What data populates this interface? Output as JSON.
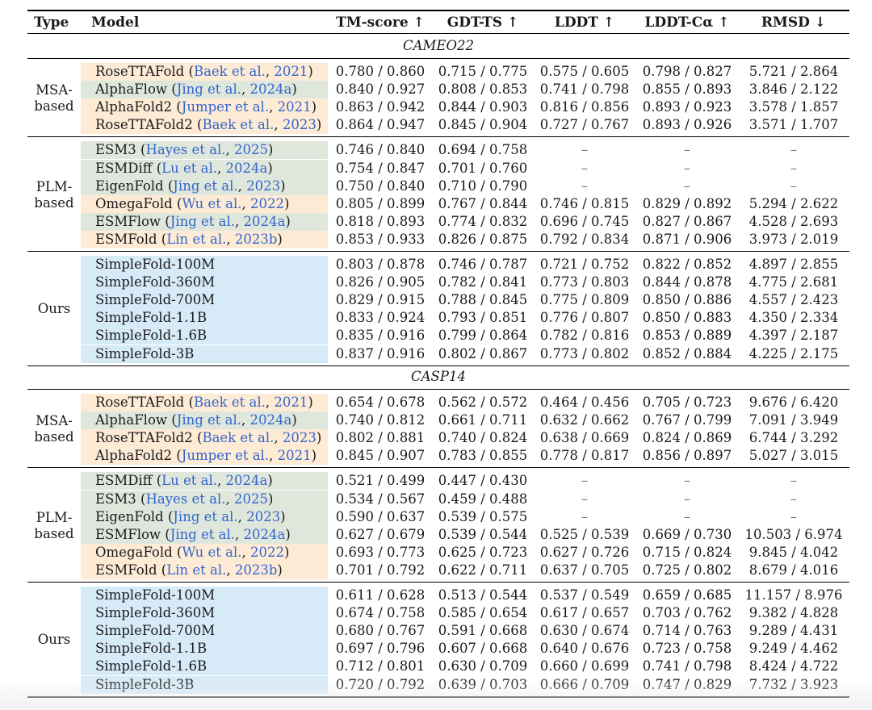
{
  "colors": {
    "orange": "#fdebd6",
    "green": "#dfe7dd",
    "blue": "#d6eaf8",
    "cite": "#3366cc"
  },
  "headers": {
    "type": "Type",
    "model": "Model",
    "tm": "TM-score ↑",
    "gdt": "GDT-TS ↑",
    "lddt": "LDDT ↑",
    "lddt_ca": "LDDT-Cα ↑",
    "rmsd": "RMSD ↓"
  },
  "sections": [
    {
      "title": "CAMEO22",
      "groups": [
        {
          "label": [
            "MSA-",
            "based"
          ],
          "rows": [
            {
              "model": "RoseTTAFold",
              "cite_pre": " (",
              "author": "Baek et al.",
              "sep": ", ",
              "year": "2021",
              "cite_post": ")",
              "color": "orange",
              "tm": "0.780 / 0.860",
              "gdt": "0.715 / 0.775",
              "lddt": "0.575 / 0.605",
              "lddt_ca": "0.798 / 0.827",
              "rmsd": "5.721 / 2.864"
            },
            {
              "model": "AlphaFlow",
              "cite_pre": " (",
              "author": "Jing et al.",
              "sep": ", ",
              "year": "2024a",
              "cite_post": ")",
              "color": "green",
              "tm": "0.840 / 0.927",
              "gdt": "0.808 / 0.853",
              "lddt": "0.741 / 0.798",
              "lddt_ca": "0.855 / 0.893",
              "rmsd": "3.846 / 2.122"
            },
            {
              "model": "AlphaFold2",
              "cite_pre": " (",
              "author": "Jumper et al.",
              "sep": ", ",
              "year": "2021",
              "cite_post": ")",
              "color": "orange",
              "tm": "0.863 / 0.942",
              "gdt": "0.844 / 0.903",
              "lddt": "0.816 / 0.856",
              "lddt_ca": "0.893 / 0.923",
              "rmsd": "3.578 / 1.857"
            },
            {
              "model": "RoseTTAFold2",
              "cite_pre": " (",
              "author": "Baek et al.",
              "sep": ", ",
              "year": "2023",
              "cite_post": ")",
              "color": "orange",
              "tm": "0.864 / 0.947",
              "gdt": "0.845 / 0.904",
              "lddt": "0.727 / 0.767",
              "lddt_ca": "0.893 / 0.926",
              "rmsd": "3.571 / 1.707"
            }
          ]
        },
        {
          "label": [
            "PLM-",
            "based"
          ],
          "rows": [
            {
              "model": "ESM3",
              "cite_pre": " (",
              "author": "Hayes et al.",
              "sep": ", ",
              "year": "2025",
              "cite_post": ")",
              "color": "green",
              "tm": "0.746 / 0.840",
              "gdt": "0.694 / 0.758",
              "lddt": "–",
              "lddt_ca": "–",
              "rmsd": "–"
            },
            {
              "model": "ESMDiff",
              "cite_pre": " (",
              "author": "Lu et al.",
              "sep": ", ",
              "year": "2024a",
              "cite_post": ")",
              "color": "green",
              "tm": "0.754 / 0.847",
              "gdt": "0.701 / 0.760",
              "lddt": "–",
              "lddt_ca": "–",
              "rmsd": "–"
            },
            {
              "model": "EigenFold",
              "cite_pre": " (",
              "author": "Jing et al.",
              "sep": ", ",
              "year": "2023",
              "cite_post": ")",
              "color": "green",
              "tm": "0.750 / 0.840",
              "gdt": "0.710 / 0.790",
              "lddt": "–",
              "lddt_ca": "–",
              "rmsd": "–"
            },
            {
              "model": "OmegaFold",
              "cite_pre": " (",
              "author": "Wu et al.",
              "sep": ", ",
              "year": "2022",
              "cite_post": ")",
              "color": "orange",
              "tm": "0.805 / 0.899",
              "gdt": "0.767 / 0.844",
              "lddt": "0.746 / 0.815",
              "lddt_ca": "0.829 / 0.892",
              "rmsd": "5.294 / 2.622"
            },
            {
              "model": "ESMFlow",
              "cite_pre": " (",
              "author": "Jing et al.",
              "sep": ", ",
              "year": "2024a",
              "cite_post": ")",
              "color": "green",
              "tm": "0.818 / 0.893",
              "gdt": "0.774 / 0.832",
              "lddt": "0.696 / 0.745",
              "lddt_ca": "0.827 / 0.867",
              "rmsd": "4.528 / 2.693"
            },
            {
              "model": "ESMFold",
              "cite_pre": " (",
              "author": "Lin et al.",
              "sep": ", ",
              "year": "2023b",
              "cite_post": ")",
              "color": "orange",
              "tm": "0.853 / 0.933",
              "gdt": "0.826 / 0.875",
              "lddt": "0.792 / 0.834",
              "lddt_ca": "0.871 / 0.906",
              "rmsd": "3.973 / 2.019"
            }
          ]
        },
        {
          "label": [
            "Ours"
          ],
          "rows": [
            {
              "model": "SimpleFold-100M",
              "color": "blue",
              "tm": "0.803 / 0.878",
              "gdt": "0.746 / 0.787",
              "lddt": "0.721 / 0.752",
              "lddt_ca": "0.822 / 0.852",
              "rmsd": "4.897 / 2.855"
            },
            {
              "model": "SimpleFold-360M",
              "color": "blue",
              "tm": "0.826 / 0.905",
              "gdt": "0.782 / 0.841",
              "lddt": "0.773 / 0.803",
              "lddt_ca": "0.844 / 0.878",
              "rmsd": "4.775 / 2.681"
            },
            {
              "model": "SimpleFold-700M",
              "color": "blue",
              "tm": "0.829 / 0.915",
              "gdt": "0.788 / 0.845",
              "lddt": "0.775 / 0.809",
              "lddt_ca": "0.850 / 0.886",
              "rmsd": "4.557 / 2.423"
            },
            {
              "model": "SimpleFold-1.1B",
              "color": "blue",
              "tm": "0.833 / 0.924",
              "gdt": "0.793 / 0.851",
              "lddt": "0.776 / 0.807",
              "lddt_ca": "0.850 / 0.883",
              "rmsd": "4.350 / 2.334"
            },
            {
              "model": "SimpleFold-1.6B",
              "color": "blue",
              "tm": "0.835 / 0.916",
              "gdt": "0.799 / 0.864",
              "lddt": "0.782 / 0.816",
              "lddt_ca": "0.853 / 0.889",
              "rmsd": "4.397 / 2.187"
            },
            {
              "model": "SimpleFold-3B",
              "color": "blue",
              "tm": "0.837 / 0.916",
              "gdt": "0.802 / 0.867",
              "lddt": "0.773 / 0.802",
              "lddt_ca": "0.852 / 0.884",
              "rmsd": "4.225 / 2.175"
            }
          ]
        }
      ]
    },
    {
      "title": "CASP14",
      "groups": [
        {
          "label": [
            "MSA-",
            "based"
          ],
          "rows": [
            {
              "model": "RoseTTAFold",
              "cite_pre": " (",
              "author": "Baek et al.",
              "sep": ", ",
              "year": "2021",
              "cite_post": ")",
              "color": "orange",
              "tm": "0.654 / 0.678",
              "gdt": "0.562 / 0.572",
              "lddt": "0.464 / 0.456",
              "lddt_ca": "0.705 / 0.723",
              "rmsd": "9.676 / 6.420"
            },
            {
              "model": "AlphaFlow",
              "cite_pre": " (",
              "author": "Jing et al.",
              "sep": ", ",
              "year": "2024a",
              "cite_post": ")",
              "color": "green",
              "tm": "0.740 / 0.812",
              "gdt": "0.661 / 0.711",
              "lddt": "0.632 / 0.662",
              "lddt_ca": "0.767 / 0.799",
              "rmsd": "7.091 / 3.949"
            },
            {
              "model": "RoseTTAFold2",
              "cite_pre": " (",
              "author": "Baek et al.",
              "sep": ", ",
              "year": "2023",
              "cite_post": ")",
              "color": "orange",
              "tm": "0.802 / 0.881",
              "gdt": "0.740 / 0.824",
              "lddt": "0.638 / 0.669",
              "lddt_ca": "0.824 / 0.869",
              "rmsd": "6.744 / 3.292"
            },
            {
              "model": "AlphaFold2",
              "cite_pre": " (",
              "author": "Jumper et al.",
              "sep": ", ",
              "year": "2021",
              "cite_post": ")",
              "color": "orange",
              "tm": "0.845 / 0.907",
              "gdt": "0.783 / 0.855",
              "lddt": "0.778 / 0.817",
              "lddt_ca": "0.856 / 0.897",
              "rmsd": "5.027 / 3.015"
            }
          ]
        },
        {
          "label": [
            "PLM-",
            "based"
          ],
          "rows": [
            {
              "model": "ESMDiff",
              "cite_pre": " (",
              "author": "Lu et al.",
              "sep": ", ",
              "year": "2024a",
              "cite_post": ")",
              "color": "green",
              "tm": "0.521 / 0.499",
              "gdt": "0.447 / 0.430",
              "lddt": "–",
              "lddt_ca": "–",
              "rmsd": "–"
            },
            {
              "model": "ESM3",
              "cite_pre": " (",
              "author": "Hayes et al.",
              "sep": ", ",
              "year": "2025",
              "cite_post": ")",
              "color": "green",
              "tm": "0.534 / 0.567",
              "gdt": "0.459 / 0.488",
              "lddt": "–",
              "lddt_ca": "–",
              "rmsd": "–"
            },
            {
              "model": "EigenFold",
              "cite_pre": " (",
              "author": "Jing et al.",
              "sep": ", ",
              "year": "2023",
              "cite_post": ")",
              "color": "green",
              "tm": "0.590 / 0.637",
              "gdt": "0.539 / 0.575",
              "lddt": "–",
              "lddt_ca": "–",
              "rmsd": "–"
            },
            {
              "model": "ESMFlow",
              "cite_pre": " (",
              "author": "Jing et al.",
              "sep": ", ",
              "year": "2024a",
              "cite_post": ")",
              "color": "green",
              "tm": "0.627 / 0.679",
              "gdt": "0.539 / 0.544",
              "lddt": "0.525 / 0.539",
              "lddt_ca": "0.669 / 0.730",
              "rmsd": "10.503 / 6.974"
            },
            {
              "model": "OmegaFold",
              "cite_pre": " (",
              "author": "Wu et al.",
              "sep": ", ",
              "year": "2022",
              "cite_post": ")",
              "color": "orange",
              "tm": "0.693 / 0.773",
              "gdt": "0.625 / 0.723",
              "lddt": "0.627 / 0.726",
              "lddt_ca": "0.715 / 0.824",
              "rmsd": "9.845 / 4.042"
            },
            {
              "model": "ESMFold",
              "cite_pre": " (",
              "author": "Lin et al.",
              "sep": ", ",
              "year": "2023b",
              "cite_post": ")",
              "color": "orange",
              "tm": "0.701 / 0.792",
              "gdt": "0.622 / 0.711",
              "lddt": "0.637 / 0.705",
              "lddt_ca": "0.725 / 0.802",
              "rmsd": "8.679 / 4.016"
            }
          ]
        },
        {
          "label": [
            "Ours"
          ],
          "rows": [
            {
              "model": "SimpleFold-100M",
              "color": "blue",
              "tm": "0.611 / 0.628",
              "gdt": "0.513 / 0.544",
              "lddt": "0.537 / 0.549",
              "lddt_ca": "0.659 / 0.685",
              "rmsd": "11.157 / 8.976"
            },
            {
              "model": "SimpleFold-360M",
              "color": "blue",
              "tm": "0.674 / 0.758",
              "gdt": "0.585 / 0.654",
              "lddt": "0.617 / 0.657",
              "lddt_ca": "0.703 / 0.762",
              "rmsd": "9.382 / 4.828"
            },
            {
              "model": "SimpleFold-700M",
              "color": "blue",
              "tm": "0.680 / 0.767",
              "gdt": "0.591 / 0.668",
              "lddt": "0.630 / 0.674",
              "lddt_ca": "0.714 / 0.763",
              "rmsd": "9.289 / 4.431"
            },
            {
              "model": "SimpleFold-1.1B",
              "color": "blue",
              "tm": "0.697 / 0.796",
              "gdt": "0.607 / 0.668",
              "lddt": "0.640 / 0.676",
              "lddt_ca": "0.723 / 0.758",
              "rmsd": "9.249 / 4.462"
            },
            {
              "model": "SimpleFold-1.6B",
              "color": "blue",
              "tm": "0.712 / 0.801",
              "gdt": "0.630 / 0.709",
              "lddt": "0.660 / 0.699",
              "lddt_ca": "0.741 / 0.798",
              "rmsd": "8.424 / 4.722"
            },
            {
              "model": "SimpleFold-3B",
              "color": "blue",
              "tm": "0.720 / 0.792",
              "gdt": "0.639 / 0.703",
              "lddt": "0.666 / 0.709",
              "lddt_ca": "0.747 / 0.829",
              "rmsd": "7.732 / 3.923"
            }
          ]
        }
      ]
    }
  ]
}
